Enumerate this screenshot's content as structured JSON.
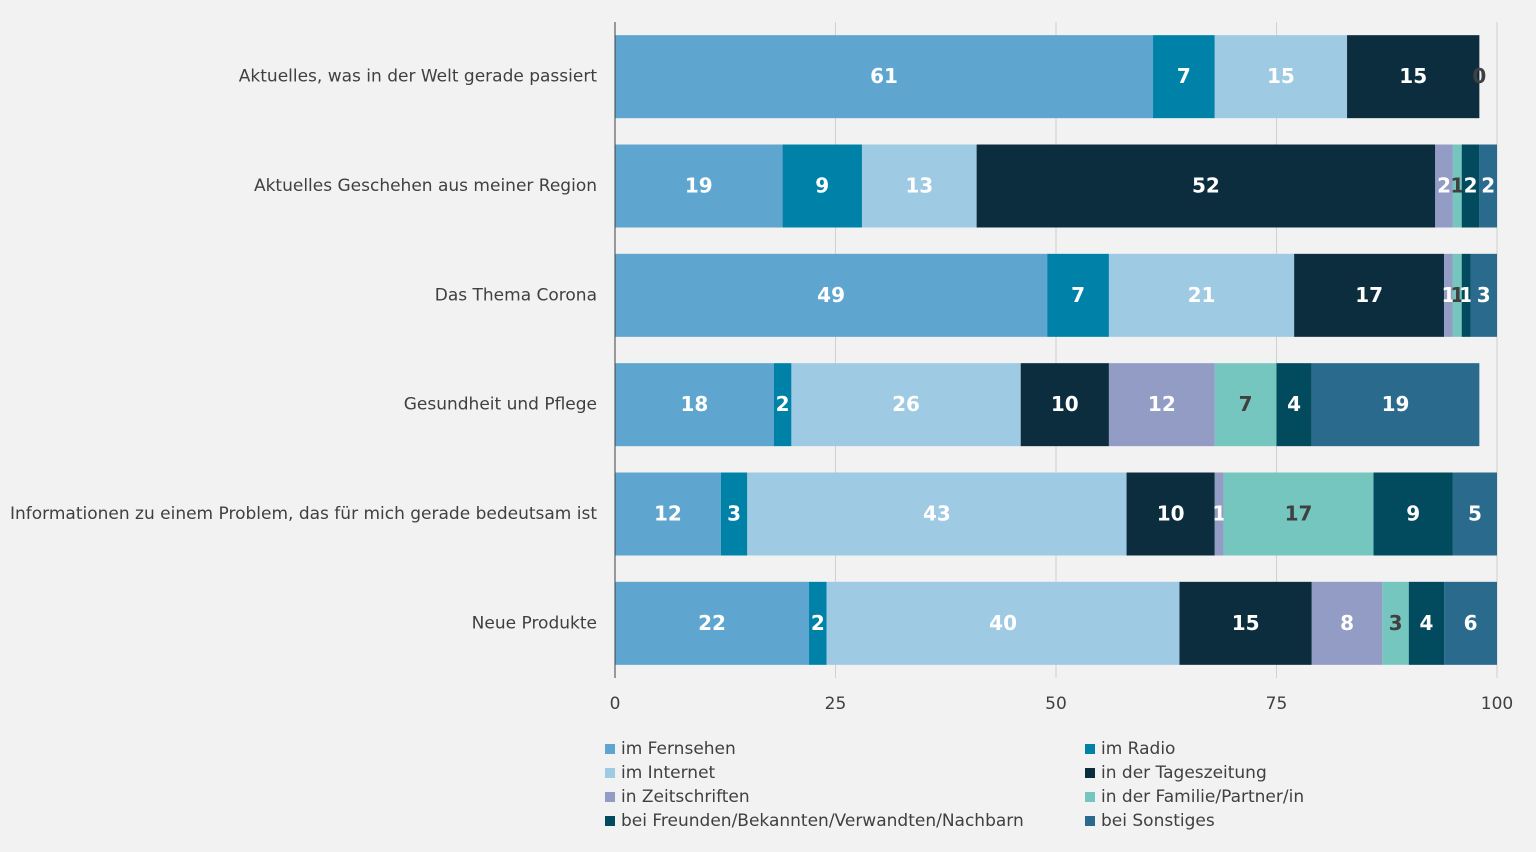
{
  "chart_data": {
    "type": "stacked-bar-horizontal",
    "categories": [
      "Aktuelles, was in der Welt gerade passiert",
      "Aktuelles Geschehen aus meiner Region",
      "Das Thema Corona",
      "Gesundheit und Pflege",
      "Informationen zu einem Problem, das für mich gerade bedeutsam ist",
      "Neue Produkte"
    ],
    "series": [
      {
        "name": "im Fernsehen",
        "color": "#5ea6cf",
        "values": [
          61,
          19,
          49,
          18,
          12,
          22
        ]
      },
      {
        "name": "im Radio",
        "color": "#0082a8",
        "values": [
          7,
          9,
          7,
          2,
          3,
          2
        ]
      },
      {
        "name": "im Internet",
        "color": "#9fcae3",
        "values": [
          15,
          13,
          21,
          26,
          43,
          40
        ]
      },
      {
        "name": "in der Tageszeitung",
        "color": "#0c2d3e",
        "values": [
          15,
          52,
          17,
          10,
          10,
          15
        ]
      },
      {
        "name": "in Zeitschriften",
        "color": "#929cc4",
        "values": [
          0,
          2,
          1,
          12,
          1,
          8
        ]
      },
      {
        "name": "in der Familie/Partner/in",
        "color": "#76c6c0",
        "values": [
          null,
          1,
          1,
          7,
          17,
          3
        ]
      },
      {
        "name": "bei Freunden/Bekannten/Verwandten/Nachbarn",
        "color": "#024a5e",
        "values": [
          null,
          2,
          1,
          4,
          9,
          4
        ]
      },
      {
        "name": "bei Sonstiges",
        "color": "#2a6a8d",
        "values": [
          null,
          2,
          3,
          19,
          5,
          6
        ]
      }
    ],
    "xlim": [
      0,
      100
    ],
    "xticks": [
      0,
      25,
      50,
      75,
      100
    ],
    "grid": true
  }
}
